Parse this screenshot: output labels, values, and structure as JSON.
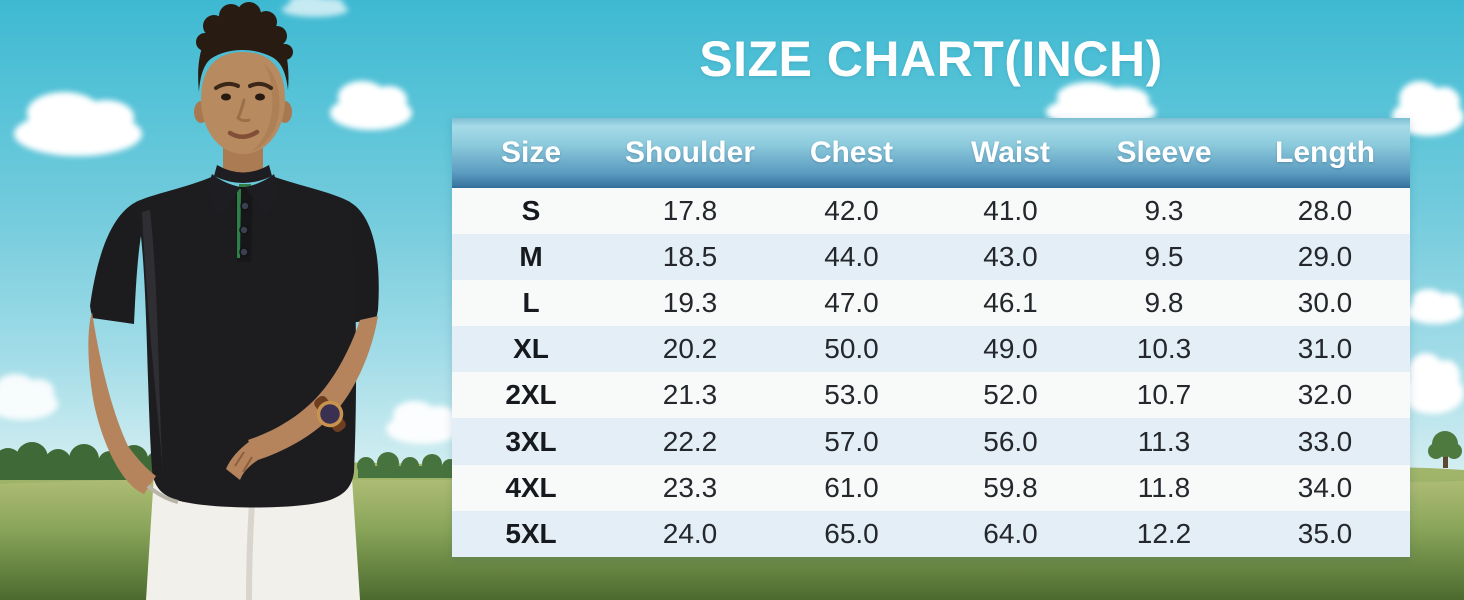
{
  "title": "SIZE CHART(INCH)",
  "chart_data": {
    "type": "table",
    "title": "SIZE CHART(INCH)",
    "unit": "inch",
    "columns": [
      "Size",
      "Shoulder",
      "Chest",
      "Waist",
      "Sleeve",
      "Length"
    ],
    "rows": [
      [
        "S",
        "17.8",
        "42.0",
        "41.0",
        "9.3",
        "28.0"
      ],
      [
        "M",
        "18.5",
        "44.0",
        "43.0",
        "9.5",
        "29.0"
      ],
      [
        "L",
        "19.3",
        "47.0",
        "46.1",
        "9.8",
        "30.0"
      ],
      [
        "XL",
        "20.2",
        "50.0",
        "49.0",
        "10.3",
        "31.0"
      ],
      [
        "2XL",
        "21.3",
        "53.0",
        "52.0",
        "10.7",
        "32.0"
      ],
      [
        "3XL",
        "22.2",
        "57.0",
        "56.0",
        "11.3",
        "33.0"
      ],
      [
        "4XL",
        "23.3",
        "61.0",
        "59.8",
        "11.8",
        "34.0"
      ],
      [
        "5XL",
        "24.0",
        "65.0",
        "64.0",
        "12.2",
        "35.0"
      ]
    ],
    "layout": {
      "header_style": "blue gradient band, white bold text",
      "row_striping": "white / pale blue alternating",
      "grid": false
    }
  },
  "scene": {
    "photo_subject": "man with curly dark hair wearing black short-sleeve polo shirt and white pants, hand in pocket, wrist watch, golf course with blue sky, clouds and green grass"
  },
  "colors": {
    "sky_top": "#3eb9d2",
    "sky_horizon": "#e2f3f4",
    "grass_light": "#aebc74",
    "grass_dark": "#4c6a2e",
    "header_top": "#a6dbe8",
    "header_bottom": "#3c79a4",
    "header_text": "#ffffff",
    "row_white": "#f8fafa",
    "row_blue": "#e3eef6",
    "cell_text": "#24272b",
    "title_text": "#ffffff",
    "polo_black": "#1d1d20",
    "placket_green": "#2e8048"
  }
}
